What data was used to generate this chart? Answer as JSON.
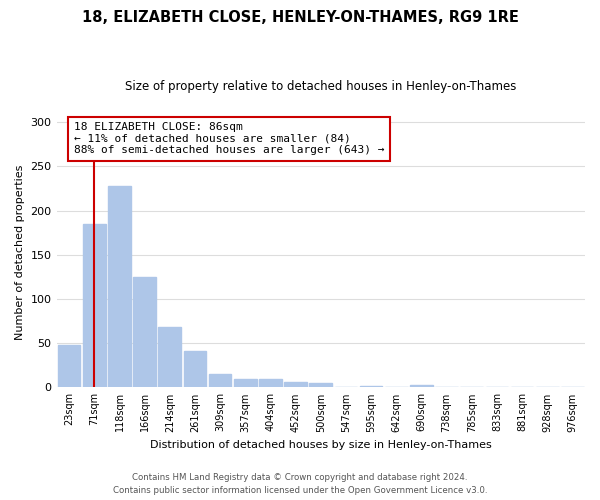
{
  "title": "18, ELIZABETH CLOSE, HENLEY-ON-THAMES, RG9 1RE",
  "subtitle": "Size of property relative to detached houses in Henley-on-Thames",
  "xlabel": "Distribution of detached houses by size in Henley-on-Thames",
  "ylabel": "Number of detached properties",
  "bar_labels": [
    "23sqm",
    "71sqm",
    "118sqm",
    "166sqm",
    "214sqm",
    "261sqm",
    "309sqm",
    "357sqm",
    "404sqm",
    "452sqm",
    "500sqm",
    "547sqm",
    "595sqm",
    "642sqm",
    "690sqm",
    "738sqm",
    "785sqm",
    "833sqm",
    "881sqm",
    "928sqm",
    "976sqm"
  ],
  "bar_values": [
    48,
    185,
    228,
    125,
    68,
    41,
    15,
    10,
    9,
    6,
    5,
    0,
    2,
    0,
    3,
    0,
    0,
    0,
    0,
    0,
    1
  ],
  "bar_color": "#aec6e8",
  "property_line_x": 1,
  "property_line_label": "18 ELIZABETH CLOSE: 86sqm",
  "annotation_line1": "← 11% of detached houses are smaller (84)",
  "annotation_line2": "88% of semi-detached houses are larger (643) →",
  "annotation_box_color": "#ffffff",
  "annotation_box_edge": "#cc0000",
  "line_color": "#cc0000",
  "ylim": [
    0,
    305
  ],
  "yticks": [
    0,
    50,
    100,
    150,
    200,
    250,
    300
  ],
  "footer1": "Contains HM Land Registry data © Crown copyright and database right 2024.",
  "footer2": "Contains public sector information licensed under the Open Government Licence v3.0.",
  "background_color": "#ffffff",
  "grid_color": "#dddddd"
}
